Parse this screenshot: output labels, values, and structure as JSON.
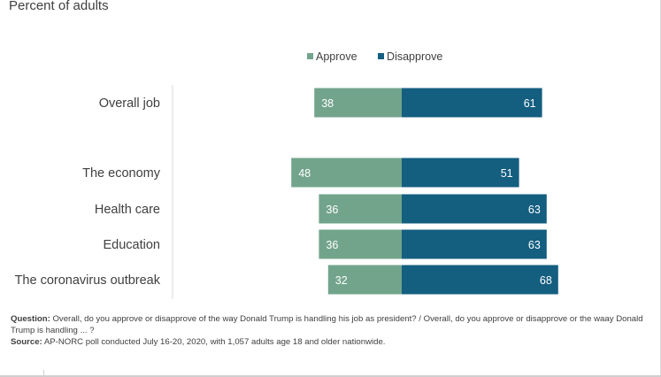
{
  "header": {
    "subtitle": "Percent of adults"
  },
  "legend": [
    {
      "label": "Approve",
      "color": "#72a48c"
    },
    {
      "label": "Disapprove",
      "color": "#145e80"
    }
  ],
  "chart_data": {
    "type": "bar",
    "orientation": "horizontal-diverging",
    "categories": [
      "Overall job",
      "The economy",
      "Health care",
      "Education",
      "The coronavirus outbreak"
    ],
    "series": [
      {
        "name": "Approve",
        "values": [
          38,
          48,
          36,
          36,
          32
        ],
        "color": "#72a48c"
      },
      {
        "name": "Disapprove",
        "values": [
          61,
          51,
          63,
          63,
          68
        ],
        "color": "#145e80"
      }
    ],
    "grid": false,
    "legend_position": "top-center"
  },
  "footnote": {
    "question_label": "Question:",
    "question_text": "Overall, do you approve or disapprove of the way Donald Trump is handling his job as president? / Overall, do you approve or disapprove or the waay Donald Trump is handling ... ?",
    "source_label": "Source:",
    "source_text": "AP-NORC poll conducted July 16-20, 2020, with 1,057 adults age 18 and older nationwide."
  }
}
